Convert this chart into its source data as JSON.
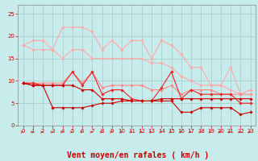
{
  "x": [
    0,
    1,
    2,
    3,
    4,
    5,
    6,
    7,
    8,
    9,
    10,
    11,
    12,
    13,
    14,
    15,
    16,
    17,
    18,
    19,
    20,
    21,
    22,
    23
  ],
  "series": [
    {
      "name": "line1_top",
      "color": "#ffaaaa",
      "linewidth": 0.8,
      "marker": "D",
      "markersize": 1.8,
      "y": [
        18,
        19,
        19,
        17,
        22,
        22,
        22,
        21,
        17,
        19,
        17,
        19,
        19,
        15,
        19,
        18,
        16,
        13,
        13,
        9,
        9,
        13,
        7,
        8
      ]
    },
    {
      "name": "line2_upper",
      "color": "#ffaaaa",
      "linewidth": 0.8,
      "marker": "D",
      "markersize": 1.8,
      "y": [
        18,
        17,
        17,
        17,
        15,
        17,
        17,
        15,
        15,
        15,
        15,
        15,
        15,
        14,
        14,
        13,
        11,
        10,
        9,
        9,
        9,
        8,
        7,
        8
      ]
    },
    {
      "name": "line3_mid_light",
      "color": "#ff8888",
      "linewidth": 0.8,
      "marker": "D",
      "markersize": 1.8,
      "y": [
        9.5,
        9.5,
        9.5,
        9.5,
        9.5,
        12,
        9.5,
        12,
        8.5,
        9,
        9,
        9,
        9,
        8,
        8,
        9,
        7,
        8,
        8,
        8,
        7,
        7,
        7,
        7
      ]
    },
    {
      "name": "line4_mid_dark",
      "color": "#ee2222",
      "linewidth": 0.8,
      "marker": "D",
      "markersize": 1.8,
      "y": [
        9.5,
        9.5,
        9,
        9,
        9,
        12,
        9,
        12,
        7,
        8,
        8,
        6,
        5.5,
        5.5,
        8.5,
        12,
        6,
        8,
        7,
        7,
        7,
        7,
        5,
        5
      ]
    },
    {
      "name": "line5_low",
      "color": "#cc0000",
      "linewidth": 0.8,
      "marker": "D",
      "markersize": 1.8,
      "y": [
        9.5,
        9,
        9,
        9,
        9,
        9,
        8,
        8,
        6,
        6,
        6,
        5.5,
        5.5,
        5.5,
        6,
        6,
        6,
        6,
        6,
        6,
        6,
        6,
        6,
        6
      ]
    },
    {
      "name": "line6_bottom",
      "color": "#cc0000",
      "linewidth": 0.8,
      "marker": "D",
      "markersize": 1.8,
      "y": [
        9.5,
        9,
        9,
        4,
        4,
        4,
        4,
        4.5,
        5,
        5,
        5.5,
        5.5,
        5.5,
        5.5,
        5.5,
        5.5,
        3,
        3,
        4,
        4,
        4,
        4,
        2.5,
        3
      ]
    }
  ],
  "xlabel": "Vent moyen/en rafales ( km/h )",
  "xlim": [
    -0.5,
    23.5
  ],
  "ylim": [
    0,
    27
  ],
  "yticks": [
    0,
    5,
    10,
    15,
    20,
    25
  ],
  "xticks": [
    0,
    1,
    2,
    3,
    4,
    5,
    6,
    7,
    8,
    9,
    10,
    11,
    12,
    13,
    14,
    15,
    16,
    17,
    18,
    19,
    20,
    21,
    22,
    23
  ],
  "bg_color": "#c8ecec",
  "grid_color": "#a0cccc",
  "xlabel_color": "#cc0000",
  "xlabel_fontsize": 7,
  "tick_fontsize": 5,
  "arrow_color": "#cc3333",
  "spine_color": "#888888"
}
